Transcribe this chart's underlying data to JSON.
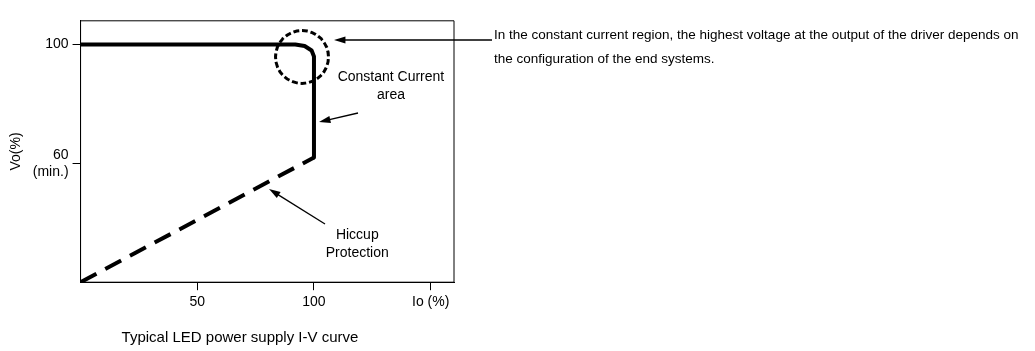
{
  "chart_data": {
    "type": "line",
    "title": "Typical LED power supply I-V curve",
    "ylabel": "Vo(%)",
    "xlim": [
      0,
      160
    ],
    "xticks": [
      50,
      100,
      {
        "value": 150,
        "label": "Io (%)"
      }
    ],
    "ylim": [
      20,
      108
    ],
    "yticks": [
      100,
      {
        "value": 60,
        "label": "60\n(min.)"
      }
    ],
    "grid": false,
    "legend": false,
    "marker": "none",
    "series": [
      {
        "color": "#000000",
        "line_style": "solid",
        "x": [
          0,
          92,
          96,
          99,
          100,
          100
        ],
        "values": [
          100,
          100,
          99.5,
          98,
          96,
          62
        ]
      },
      {
        "color": "#000000",
        "line_style": "dashed",
        "x": [
          0,
          100
        ],
        "values": [
          20,
          62
        ]
      }
    ],
    "annotations": [
      "Constant Current area",
      "Hiccup Protection",
      "In the constant current region, the highest voltage at the output of the driver depends on the configuration of the end systems."
    ]
  }
}
